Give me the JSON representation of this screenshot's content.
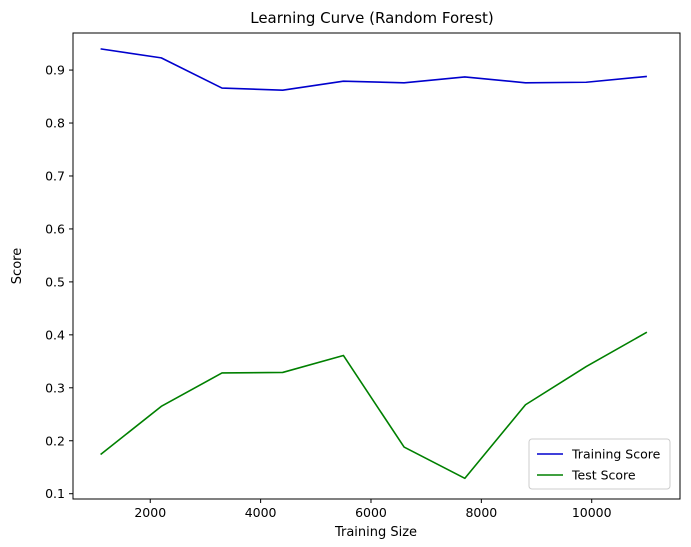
{
  "chart_data": {
    "type": "line",
    "title": "Learning Curve (Random Forest)",
    "xlabel": "Training Size",
    "ylabel": "Score",
    "xlim": [
      600,
      11600
    ],
    "ylim": [
      0.09,
      0.97
    ],
    "xticks": [
      2000,
      4000,
      6000,
      8000,
      10000
    ],
    "yticks": [
      0.1,
      0.2,
      0.3,
      0.4,
      0.5,
      0.6,
      0.7,
      0.8,
      0.9
    ],
    "grid": false,
    "legend_position": "lower-right",
    "x": [
      1100,
      2200,
      3300,
      4400,
      5500,
      6600,
      7700,
      8800,
      9900,
      11000
    ],
    "series": [
      {
        "name": "Training Score",
        "color": "#0000cd",
        "values": [
          0.94,
          0.923,
          0.866,
          0.862,
          0.879,
          0.876,
          0.887,
          0.876,
          0.877,
          0.888
        ]
      },
      {
        "name": "Test Score",
        "color": "#008000",
        "values": [
          0.174,
          0.265,
          0.328,
          0.329,
          0.361,
          0.188,
          0.129,
          0.268,
          0.34,
          0.405
        ]
      }
    ]
  }
}
